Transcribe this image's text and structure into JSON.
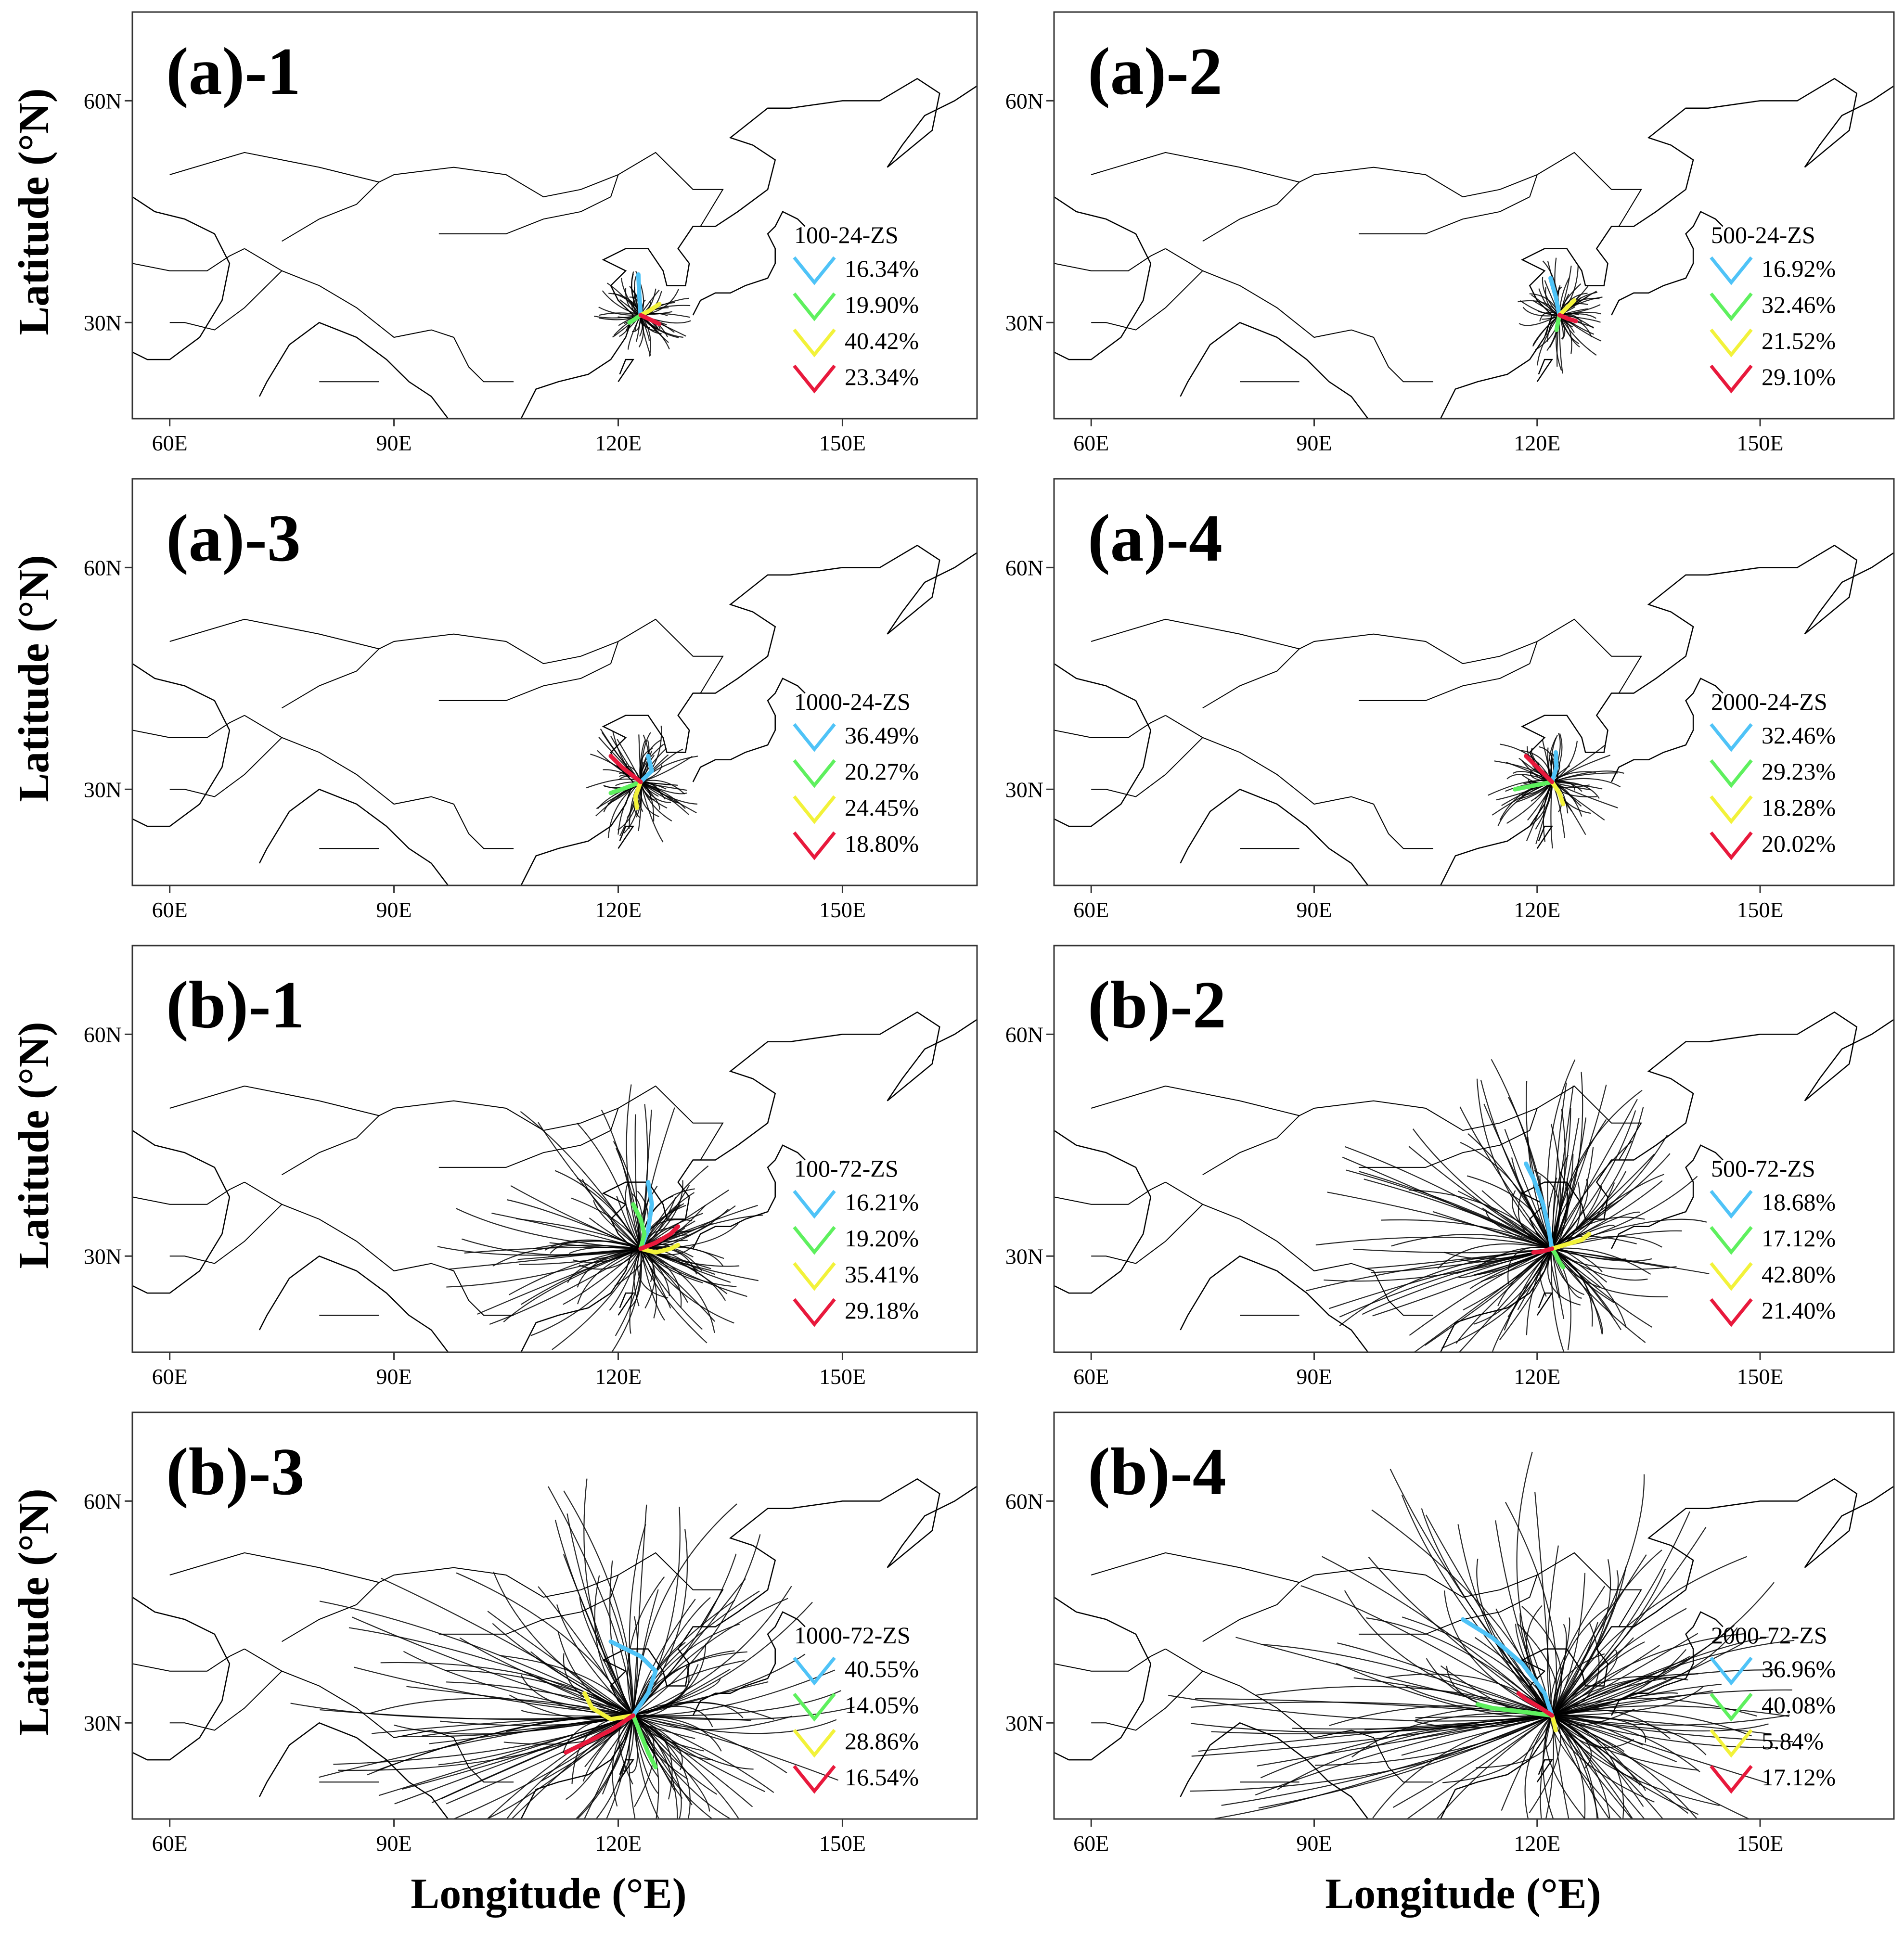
{
  "figure": {
    "ylabel": "Latitude (°N)",
    "xlabel": "Longitude (°E)"
  },
  "colors": {
    "cluster1": "#4fc3f7",
    "cluster2": "#5ef05e",
    "cluster3": "#f2f23a",
    "cluster4": "#e8193c",
    "trajectory": "#000000",
    "coastline": "#000000"
  },
  "chart_data": [
    {
      "type": "line",
      "panel": "(a)-1",
      "legend_title": "100-24-ZS",
      "x_ticks": [
        "60E",
        "90E",
        "120E",
        "150E"
      ],
      "y_ticks": [
        "30N",
        "60N"
      ],
      "xlim": [
        55,
        168
      ],
      "ylim": [
        17,
        72
      ],
      "origin": [
        123,
        31
      ],
      "series": [
        {
          "name": "16.34%",
          "x": [
            123,
            122.8,
            122.7
          ],
          "y": [
            31,
            34,
            36.5
          ]
        },
        {
          "name": "19.90%",
          "x": [
            123,
            122.3,
            121.5
          ],
          "y": [
            31,
            30.5,
            30
          ]
        },
        {
          "name": "40.42%",
          "x": [
            123,
            124,
            125.5
          ],
          "y": [
            31,
            31.5,
            32.5
          ]
        },
        {
          "name": "23.34%",
          "x": [
            123,
            124.5,
            125.5
          ],
          "y": [
            31,
            30.3,
            29.8
          ]
        }
      ]
    },
    {
      "type": "line",
      "panel": "(a)-2",
      "legend_title": "500-24-ZS",
      "x_ticks": [
        "60E",
        "90E",
        "120E",
        "150E"
      ],
      "y_ticks": [
        "30N",
        "60N"
      ],
      "xlim": [
        55,
        168
      ],
      "ylim": [
        17,
        72
      ],
      "origin": [
        123,
        31
      ],
      "series": [
        {
          "name": "16.92%",
          "x": [
            123,
            122.5,
            121.8
          ],
          "y": [
            31,
            33.5,
            36
          ]
        },
        {
          "name": "32.46%",
          "x": [
            123,
            122.8,
            122.6
          ],
          "y": [
            31,
            30,
            29
          ]
        },
        {
          "name": "21.52%",
          "x": [
            123,
            124,
            125
          ],
          "y": [
            31,
            32,
            33
          ]
        },
        {
          "name": "29.10%",
          "x": [
            123,
            124.2,
            125.2
          ],
          "y": [
            31,
            30.5,
            30.2
          ]
        }
      ]
    },
    {
      "type": "line",
      "panel": "(a)-3",
      "legend_title": "1000-24-ZS",
      "x_ticks": [
        "60E",
        "90E",
        "120E",
        "150E"
      ],
      "y_ticks": [
        "30N",
        "60N"
      ],
      "xlim": [
        55,
        168
      ],
      "ylim": [
        17,
        72
      ],
      "origin": [
        123,
        31
      ],
      "series": [
        {
          "name": "36.49%",
          "x": [
            123,
            124.5,
            124
          ],
          "y": [
            31,
            32.5,
            34.5
          ]
        },
        {
          "name": "20.27%",
          "x": [
            123,
            121,
            119
          ],
          "y": [
            31,
            30.2,
            29.5
          ]
        },
        {
          "name": "24.45%",
          "x": [
            123,
            122.3,
            122.5
          ],
          "y": [
            31,
            29,
            27.5
          ]
        },
        {
          "name": "18.80%",
          "x": [
            123,
            120.5,
            119
          ],
          "y": [
            31,
            33,
            34.5
          ]
        }
      ]
    },
    {
      "type": "line",
      "panel": "(a)-4",
      "legend_title": "2000-24-ZS",
      "x_ticks": [
        "60E",
        "90E",
        "120E",
        "150E"
      ],
      "y_ticks": [
        "30N",
        "60N"
      ],
      "xlim": [
        55,
        168
      ],
      "ylim": [
        17,
        72
      ],
      "origin": [
        122,
        31
      ],
      "series": [
        {
          "name": "32.46%",
          "x": [
            122,
            122.6,
            122.5
          ],
          "y": [
            31,
            33,
            35
          ]
        },
        {
          "name": "29.23%",
          "x": [
            122,
            119.5,
            117
          ],
          "y": [
            31,
            30.5,
            30
          ]
        },
        {
          "name": "18.28%",
          "x": [
            122,
            123,
            123.5
          ],
          "y": [
            31,
            29.5,
            28
          ]
        },
        {
          "name": "20.02%",
          "x": [
            122,
            120,
            118.5
          ],
          "y": [
            31,
            33,
            34.5
          ]
        }
      ]
    },
    {
      "type": "line",
      "panel": "(b)-1",
      "legend_title": "100-72-ZS",
      "x_ticks": [
        "60E",
        "90E",
        "120E",
        "150E"
      ],
      "y_ticks": [
        "30N",
        "60N"
      ],
      "xlim": [
        55,
        168
      ],
      "ylim": [
        17,
        72
      ],
      "origin": [
        123,
        31
      ],
      "series": [
        {
          "name": "16.21%",
          "x": [
            123,
            124,
            124.5,
            124
          ],
          "y": [
            31,
            33.5,
            37,
            40
          ]
        },
        {
          "name": "19.20%",
          "x": [
            123,
            123.5,
            123,
            122
          ],
          "y": [
            31,
            33,
            35,
            37
          ]
        },
        {
          "name": "35.41%",
          "x": [
            123,
            125,
            127,
            128
          ],
          "y": [
            31,
            30.5,
            31,
            31.5
          ]
        },
        {
          "name": "29.18%",
          "x": [
            123,
            125,
            127,
            128
          ],
          "y": [
            31,
            31.8,
            33,
            34
          ]
        }
      ]
    },
    {
      "type": "line",
      "panel": "(b)-2",
      "legend_title": "500-72-ZS",
      "x_ticks": [
        "60E",
        "90E",
        "120E",
        "150E"
      ],
      "y_ticks": [
        "30N",
        "60N"
      ],
      "xlim": [
        55,
        168
      ],
      "ylim": [
        17,
        72
      ],
      "origin": [
        122,
        31
      ],
      "series": [
        {
          "name": "18.68%",
          "x": [
            122,
            121.5,
            120.8,
            119.5,
            118.5
          ],
          "y": [
            31,
            34,
            37,
            40.5,
            42.5
          ]
        },
        {
          "name": "17.12%",
          "x": [
            122,
            122.5,
            123,
            123.5
          ],
          "y": [
            31,
            30.2,
            29.2,
            28.5
          ]
        },
        {
          "name": "42.80%",
          "x": [
            122,
            124,
            126,
            127
          ],
          "y": [
            31,
            31.6,
            32.2,
            33
          ]
        },
        {
          "name": "21.40%",
          "x": [
            122,
            120.5,
            119.5
          ],
          "y": [
            31,
            30.6,
            30.5
          ]
        }
      ]
    },
    {
      "type": "line",
      "panel": "(b)-3",
      "legend_title": "1000-72-ZS",
      "x_ticks": [
        "60E",
        "90E",
        "120E",
        "150E"
      ],
      "y_ticks": [
        "30N",
        "60N"
      ],
      "xlim": [
        55,
        168
      ],
      "ylim": [
        17,
        72
      ],
      "origin": [
        122,
        31
      ],
      "series": [
        {
          "name": "40.55%",
          "x": [
            122,
            124,
            125,
            123,
            119
          ],
          "y": [
            31,
            34,
            37,
            39,
            41
          ]
        },
        {
          "name": "14.05%",
          "x": [
            122,
            123,
            124,
            125
          ],
          "y": [
            31,
            28.5,
            26,
            24
          ]
        },
        {
          "name": "28.86%",
          "x": [
            122,
            119,
            116.5,
            115.5
          ],
          "y": [
            31,
            30.5,
            32,
            34
          ]
        },
        {
          "name": "16.54%",
          "x": [
            122,
            119,
            116,
            113
          ],
          "y": [
            31,
            29,
            27.5,
            26
          ]
        }
      ]
    },
    {
      "type": "line",
      "panel": "(b)-4",
      "legend_title": "2000-72-ZS",
      "x_ticks": [
        "60E",
        "90E",
        "120E",
        "150E"
      ],
      "y_ticks": [
        "30N",
        "60N"
      ],
      "xlim": [
        55,
        168
      ],
      "ylim": [
        17,
        72
      ],
      "origin": [
        122,
        31
      ],
      "series": [
        {
          "name": "36.96%",
          "x": [
            122,
            121,
            118,
            114,
            110
          ],
          "y": [
            31,
            34,
            38,
            41.5,
            44
          ]
        },
        {
          "name": "40.08%",
          "x": [
            122,
            118,
            114,
            112
          ],
          "y": [
            31,
            31.5,
            32,
            32.5
          ]
        },
        {
          "name": "5.84%",
          "x": [
            122,
            122.3,
            122.5
          ],
          "y": [
            31,
            30,
            29
          ]
        },
        {
          "name": "17.12%",
          "x": [
            122,
            120.5,
            118.5,
            117.5
          ],
          "y": [
            31,
            32,
            33.2,
            34
          ]
        }
      ]
    }
  ]
}
